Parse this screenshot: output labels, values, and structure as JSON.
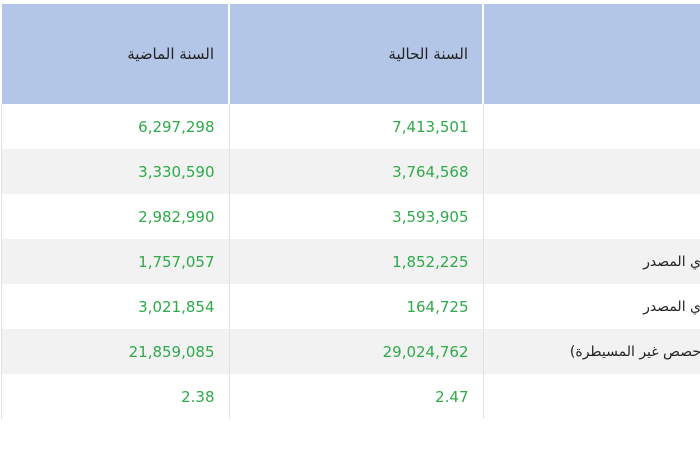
{
  "table": {
    "header": [
      "السنة الحالية",
      "السنة الماضية"
    ],
    "rows": [
      {
        "current": "7,413,501",
        "previous": "6,297,298"
      },
      {
        "current": "3,764,568",
        "previous": "3,330,590"
      },
      {
        "current": "3,593,905",
        "previous": "2,982,990"
      },
      {
        "label": "ي المصدر",
        "current": "1,852,225",
        "previous": "1,757,057"
      },
      {
        "label": "ي المصدر",
        "current": "164,725",
        "previous": "3,021,854"
      },
      {
        "label": "حصص غير المسيطرة)",
        "current": "29,024,762",
        "previous": "21,859,085"
      },
      {
        "current": "2.47",
        "previous": "2.38"
      }
    ]
  }
}
